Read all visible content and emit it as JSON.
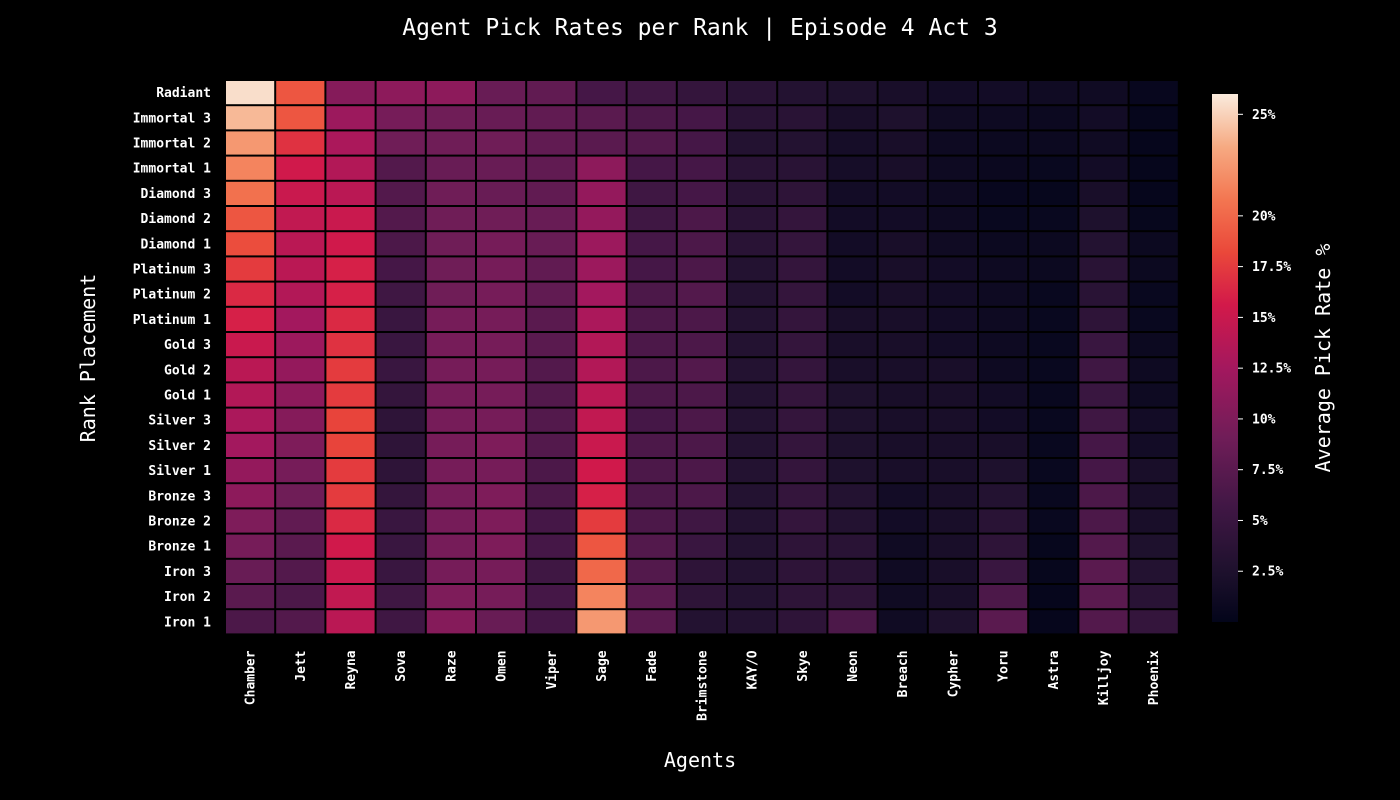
{
  "chart_data": {
    "type": "heatmap",
    "title": "Agent Pick Rates per Rank | Episode 4 Act 3",
    "xlabel": "Agents",
    "ylabel": "Rank Placement",
    "colorbar_label": "Average Pick Rate %",
    "colormap": "rocket",
    "value_range": [
      0,
      26
    ],
    "colorbar_ticks": [
      2.5,
      5,
      7.5,
      10,
      12.5,
      15,
      17.5,
      20,
      25
    ],
    "colorbar_tick_labels": [
      "2.5%",
      "5%",
      "7.5%",
      "10%",
      "12.5%",
      "15%",
      "17.5%",
      "20%",
      "25%"
    ],
    "agents": [
      "Chamber",
      "Jett",
      "Reyna",
      "Sova",
      "Raze",
      "Omen",
      "Viper",
      "Sage",
      "Fade",
      "Brimstone",
      "KAY/O",
      "Skye",
      "Neon",
      "Breach",
      "Cypher",
      "Yoru",
      "Astra",
      "Killjoy",
      "Phoenix"
    ],
    "ranks": [
      "Radiant",
      "Immortal 3",
      "Immortal 2",
      "Immortal 1",
      "Diamond 3",
      "Diamond 2",
      "Diamond 1",
      "Platinum 3",
      "Platinum 2",
      "Platinum 1",
      "Gold 3",
      "Gold 2",
      "Gold 1",
      "Silver 3",
      "Silver 2",
      "Silver 1",
      "Bronze 3",
      "Bronze 2",
      "Bronze 1",
      "Iron 3",
      "Iron 2",
      "Iron 1"
    ],
    "values": [
      [
        25.5,
        19.0,
        10.5,
        11.0,
        11.0,
        8.5,
        8.0,
        6.0,
        5.5,
        4.5,
        3.5,
        3.0,
        2.5,
        2.0,
        1.5,
        1.5,
        1.2,
        1.2,
        0.5
      ],
      [
        24.0,
        19.0,
        12.0,
        9.5,
        9.0,
        8.5,
        8.0,
        7.5,
        6.5,
        6.0,
        3.5,
        3.5,
        2.0,
        2.5,
        1.2,
        1.0,
        0.8,
        1.5,
        0.3
      ],
      [
        22.5,
        17.0,
        13.0,
        9.0,
        9.0,
        9.0,
        8.0,
        7.5,
        7.0,
        6.0,
        3.0,
        3.0,
        1.8,
        2.0,
        1.0,
        0.8,
        0.8,
        1.2,
        0.3
      ],
      [
        21.5,
        15.5,
        13.5,
        7.0,
        8.5,
        8.5,
        8.0,
        11.0,
        6.0,
        6.0,
        3.5,
        3.5,
        1.8,
        2.0,
        1.0,
        0.7,
        0.6,
        1.5,
        0.3
      ],
      [
        20.5,
        15.0,
        14.0,
        7.0,
        9.0,
        8.5,
        8.0,
        11.5,
        5.5,
        6.0,
        3.5,
        4.0,
        1.5,
        1.5,
        1.0,
        0.5,
        0.4,
        2.0,
        0.3
      ],
      [
        19.0,
        14.5,
        15.0,
        7.0,
        9.0,
        9.0,
        8.5,
        11.5,
        5.5,
        6.5,
        3.5,
        4.5,
        1.5,
        1.5,
        1.0,
        0.6,
        0.6,
        2.5,
        0.4
      ],
      [
        18.5,
        14.0,
        15.5,
        6.5,
        9.0,
        9.5,
        8.5,
        12.0,
        6.0,
        6.5,
        3.5,
        4.5,
        1.5,
        2.0,
        1.2,
        0.8,
        0.8,
        3.0,
        0.8
      ],
      [
        17.5,
        14.0,
        16.0,
        6.0,
        9.0,
        9.5,
        8.0,
        12.0,
        6.0,
        6.5,
        3.0,
        4.5,
        1.5,
        2.0,
        1.5,
        1.0,
        0.8,
        3.5,
        0.8
      ],
      [
        16.5,
        13.5,
        16.0,
        5.5,
        9.0,
        9.5,
        8.0,
        12.5,
        6.5,
        7.0,
        3.0,
        4.5,
        1.5,
        2.0,
        1.5,
        1.0,
        0.6,
        3.5,
        0.6
      ],
      [
        16.0,
        12.5,
        16.5,
        5.0,
        9.5,
        9.5,
        7.5,
        13.0,
        6.5,
        6.5,
        3.0,
        4.5,
        2.0,
        2.0,
        1.5,
        1.0,
        0.6,
        4.0,
        0.6
      ],
      [
        15.0,
        12.0,
        17.0,
        5.0,
        9.5,
        9.5,
        7.5,
        13.5,
        6.5,
        6.5,
        3.0,
        4.5,
        2.0,
        2.0,
        1.5,
        1.0,
        0.6,
        5.0,
        0.8
      ],
      [
        14.0,
        11.5,
        17.5,
        5.0,
        9.5,
        9.5,
        7.0,
        13.5,
        6.5,
        7.0,
        3.0,
        4.5,
        2.0,
        2.0,
        2.0,
        1.0,
        0.6,
        5.5,
        1.0
      ],
      [
        13.5,
        11.0,
        17.5,
        4.5,
        9.5,
        9.5,
        7.0,
        14.0,
        6.5,
        6.5,
        3.0,
        4.5,
        2.5,
        2.0,
        2.0,
        1.5,
        0.6,
        5.0,
        1.0
      ],
      [
        13.0,
        10.5,
        18.0,
        4.0,
        9.5,
        9.5,
        7.0,
        14.5,
        6.0,
        6.5,
        3.0,
        4.5,
        2.5,
        2.0,
        2.0,
        1.5,
        0.6,
        5.5,
        1.5
      ],
      [
        12.5,
        10.0,
        18.0,
        4.0,
        9.5,
        10.0,
        7.0,
        15.0,
        6.5,
        6.5,
        3.0,
        4.5,
        2.5,
        2.0,
        2.0,
        2.0,
        0.6,
        6.0,
        1.5
      ],
      [
        11.5,
        9.5,
        17.5,
        4.0,
        9.5,
        9.5,
        6.5,
        15.5,
        6.5,
        6.5,
        3.0,
        4.5,
        2.5,
        2.0,
        2.0,
        2.5,
        0.6,
        6.0,
        2.0
      ],
      [
        11.0,
        9.0,
        17.5,
        4.5,
        9.5,
        10.0,
        6.5,
        16.0,
        6.5,
        6.5,
        3.0,
        4.5,
        3.0,
        1.5,
        2.0,
        3.0,
        0.6,
        6.5,
        2.0
      ],
      [
        10.0,
        8.0,
        16.5,
        5.0,
        9.5,
        10.0,
        6.0,
        17.5,
        6.5,
        5.5,
        3.0,
        4.5,
        3.0,
        1.5,
        2.0,
        3.5,
        0.6,
        6.5,
        2.0
      ],
      [
        9.5,
        7.5,
        15.5,
        5.0,
        9.5,
        10.0,
        6.0,
        19.0,
        7.0,
        5.0,
        3.0,
        4.0,
        3.5,
        1.2,
        2.0,
        4.0,
        0.4,
        7.0,
        2.5
      ],
      [
        8.5,
        7.0,
        15.0,
        5.0,
        9.5,
        9.5,
        5.5,
        20.0,
        7.0,
        4.0,
        3.0,
        4.0,
        3.5,
        1.2,
        2.0,
        5.0,
        0.4,
        7.5,
        3.0
      ],
      [
        7.5,
        6.5,
        14.5,
        5.5,
        10.0,
        9.5,
        6.0,
        21.5,
        7.5,
        4.0,
        3.0,
        4.0,
        4.0,
        1.2,
        2.0,
        6.5,
        0.3,
        7.5,
        3.5
      ],
      [
        6.5,
        7.0,
        14.0,
        5.5,
        10.5,
        8.5,
        6.0,
        22.5,
        7.5,
        3.0,
        3.0,
        4.0,
        6.5,
        1.2,
        2.5,
        7.5,
        0.3,
        7.0,
        4.5
      ]
    ]
  }
}
